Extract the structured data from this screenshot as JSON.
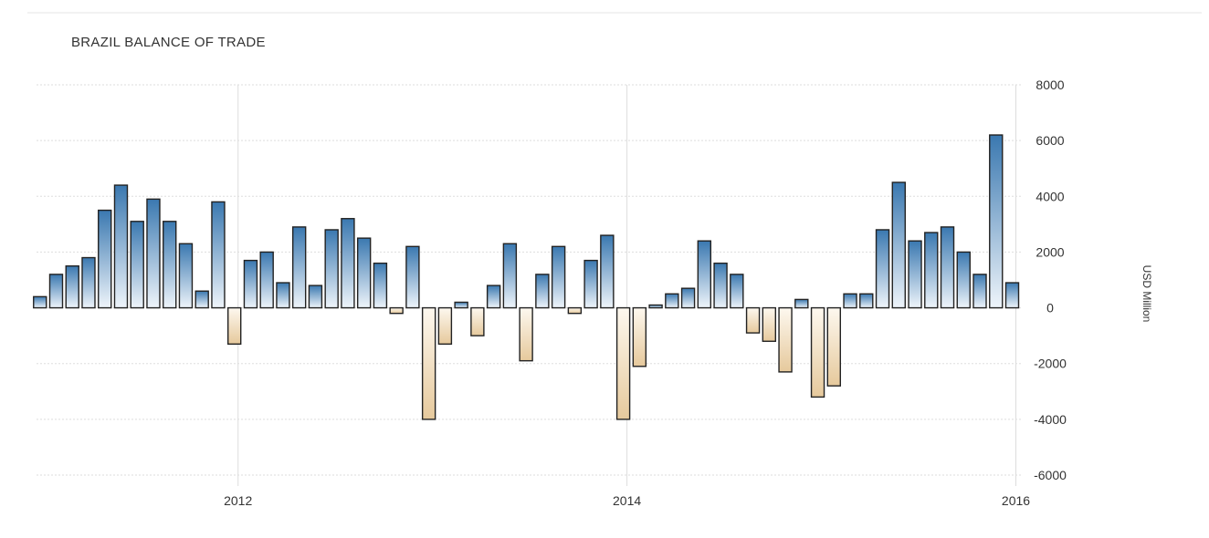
{
  "chart_data": {
    "type": "bar",
    "title": "BRAZIL BALANCE OF TRADE",
    "ylabel": "USD Million",
    "xlabel": "",
    "ylim": [
      -6000,
      8000
    ],
    "yticks": [
      8000,
      6000,
      4000,
      2000,
      0,
      -2000,
      -4000,
      -6000
    ],
    "xticks": [
      "2012",
      "2014",
      "2016"
    ],
    "xlim": [
      "2010-12",
      "2016-01"
    ],
    "grid": true,
    "legend": "none",
    "colors": {
      "positive": "#3f7fb5",
      "negative": "#e8cfa6",
      "grid": "#dddddd",
      "bar_outline": "#222222"
    },
    "series": [
      {
        "x": [
          "2011-01",
          "2011-02",
          "2011-03",
          "2011-04",
          "2011-05",
          "2011-06",
          "2011-07",
          "2011-08",
          "2011-09",
          "2011-10",
          "2011-11",
          "2011-12",
          "2012-01",
          "2012-02",
          "2012-03",
          "2012-04",
          "2012-05",
          "2012-06",
          "2012-07",
          "2012-08",
          "2012-09",
          "2012-10",
          "2012-11",
          "2012-12",
          "2013-01",
          "2013-02",
          "2013-03",
          "2013-04",
          "2013-05",
          "2013-06",
          "2013-07",
          "2013-08",
          "2013-09",
          "2013-10",
          "2013-11",
          "2013-12",
          "2014-01",
          "2014-02",
          "2014-03",
          "2014-04",
          "2014-05",
          "2014-06",
          "2014-07",
          "2014-08",
          "2014-09",
          "2014-10",
          "2014-11",
          "2014-12",
          "2015-01",
          "2015-02",
          "2015-03",
          "2015-04",
          "2015-05",
          "2015-06",
          "2015-07",
          "2015-08",
          "2015-09",
          "2015-10",
          "2015-11",
          "2015-12",
          "2016-01"
        ],
        "values": [
          400,
          1200,
          1500,
          1800,
          3500,
          4400,
          3100,
          3900,
          3100,
          2300,
          600,
          3800,
          -1300,
          1700,
          2000,
          900,
          2900,
          800,
          2800,
          3200,
          2500,
          1600,
          -200,
          2200,
          -4000,
          -1300,
          200,
          -1000,
          800,
          2300,
          -1900,
          1200,
          2200,
          -200,
          1700,
          2600,
          -4000,
          -2100,
          100,
          500,
          700,
          2400,
          1600,
          1200,
          -900,
          -1200,
          -2300,
          300,
          -3200,
          -2800,
          500,
          500,
          2800,
          4500,
          2400,
          2700,
          2900,
          2000,
          1200,
          6200,
          900
        ]
      }
    ]
  }
}
